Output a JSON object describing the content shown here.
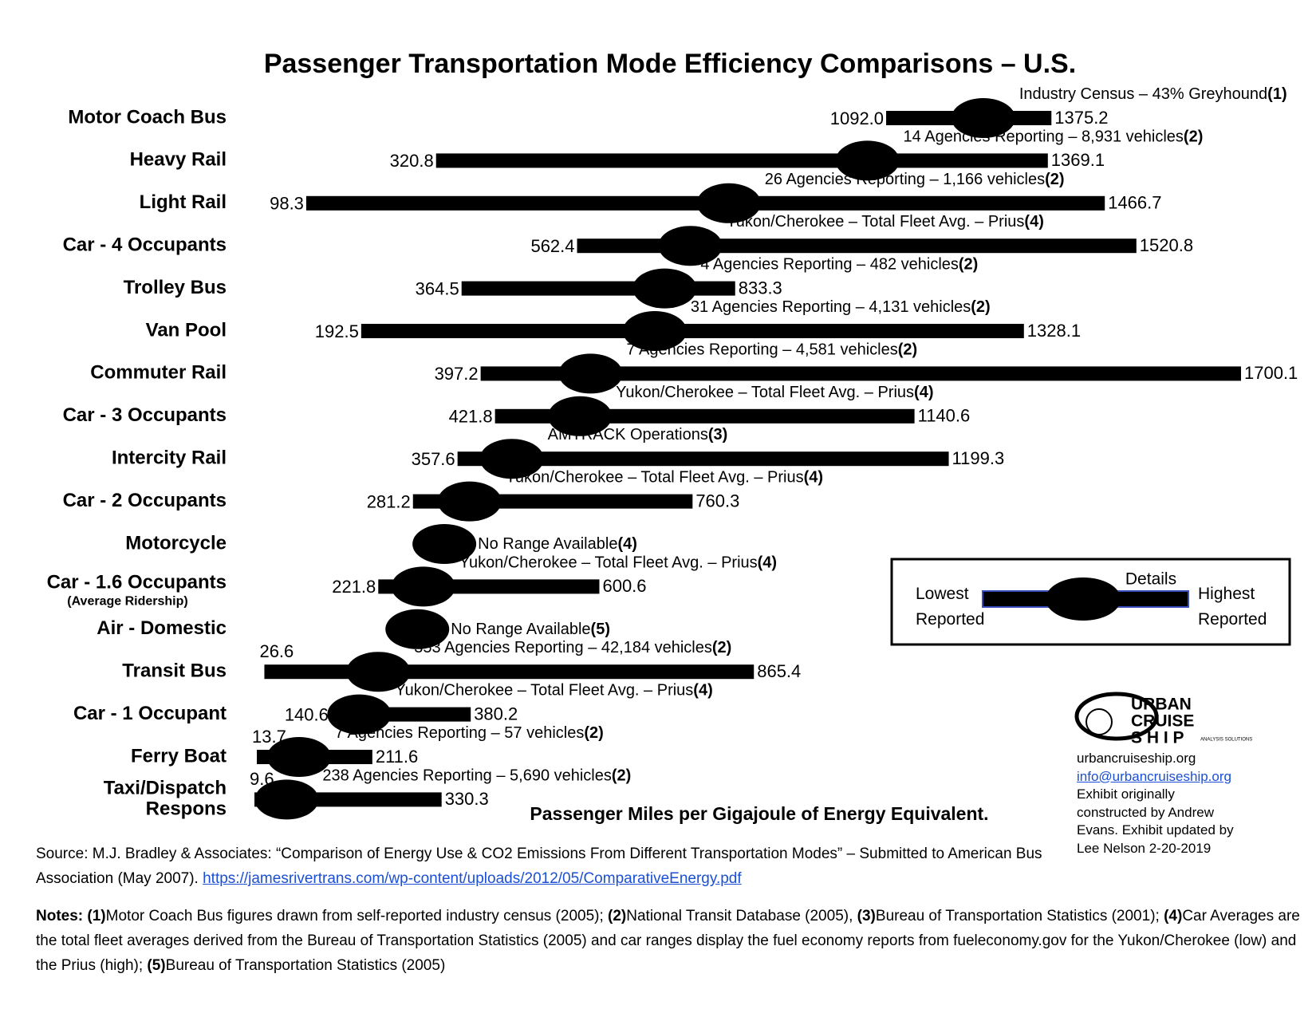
{
  "chart_data": {
    "type": "range",
    "title": "Passenger Transportation Mode Efficiency Comparisons – U.S.",
    "axis_label": "Passenger Miles per Gigajoule of Energy Equivalent.",
    "categories": [
      "Motor Coach Bus",
      "Heavy Rail",
      "Light Rail",
      "Car - 4 Occupants",
      "Trolley Bus",
      "Van Pool",
      "Commuter Rail",
      "Car - 3 Occupants",
      "Intercity Rail",
      "Car - 2 Occupants",
      "Motorcycle",
      "Car - 1.6 Occupants",
      "Air - Domestic",
      "Transit Bus",
      "Car - 1 Occupant",
      "Ferry Boat",
      "Taxi/Dispatch\nRespons"
    ],
    "category_notes": [
      null,
      null,
      null,
      null,
      null,
      null,
      null,
      null,
      null,
      null,
      null,
      "(Average Ridership)",
      null,
      null,
      null,
      null,
      null
    ],
    "series": [
      {
        "name": "Lowest Reported",
        "color": "#000000",
        "values": [
          1092.0,
          320.8,
          98.3,
          562.4,
          364.5,
          192.5,
          397.2,
          421.8,
          357.6,
          281.2,
          null,
          221.8,
          null,
          26.6,
          140.6,
          13.7,
          9.6
        ],
        "value_labels": [
          "1092.0",
          "320.8",
          "98.3",
          "562.4",
          "364.5",
          "192.5",
          "397.2",
          "421.8",
          "357.6",
          "281.2",
          null,
          "221.8",
          null,
          "26.6",
          "140.6",
          "13.7",
          "9.6"
        ]
      },
      {
        "name": "Average",
        "color": "#000000",
        "values": [
          1258.5,
          1059.9,
          822.4,
          756.4,
          712.5,
          695.5,
          585.6,
          567.3,
          450.5,
          378.1,
          335.0,
          298.9,
          288.7,
          221.8,
          189.1,
          86.0,
          64.8
        ],
        "value_labels": [
          "1258.5",
          "1059.9",
          "822.4",
          "756.4",
          "712.5",
          "695.5",
          "585.6",
          "567.3",
          "450.5",
          "378.1",
          "335.0",
          "298.9",
          "288.7",
          "221.8",
          "189.1",
          "86.0",
          "64.8"
        ]
      },
      {
        "name": "Highest Reported",
        "color": "#000000",
        "values": [
          1375.2,
          1369.1,
          1466.7,
          1520.8,
          833.3,
          1328.1,
          1700.1,
          1140.6,
          1199.3,
          760.3,
          null,
          600.6,
          null,
          865.4,
          380.2,
          211.6,
          330.3
        ],
        "value_labels": [
          "1375.2",
          "1369.1",
          "1466.7",
          "1520.8",
          "833.3",
          "1328.1",
          "1700.1",
          "1140.6",
          "1199.3",
          "760.3",
          null,
          "600.6",
          null,
          "865.4",
          "380.2",
          "211.6",
          "330.3"
        ]
      }
    ],
    "details": [
      "Industry Census – 43% Greyhound",
      "14 Agencies Reporting – 8,931 vehicles",
      "26 Agencies Reporting – 1,166 vehicles",
      "Yukon/Cherokee – Total Fleet Avg. – Prius",
      "4 Agencies Reporting – 482 vehicles",
      "31 Agencies Reporting – 4,131 vehicles",
      "7 Agencies Reporting – 4,581 vehicles",
      "Yukon/Cherokee – Total Fleet Avg. – Prius",
      "AMTRACK Operations",
      "Yukon/Cherokee – Total Fleet Avg. – Prius",
      "No Range Available",
      "Yukon/Cherokee – Total Fleet Avg. – Prius",
      "No Range Available",
      "353 Agencies Reporting – 42,184 vehicles",
      "Yukon/Cherokee – Total Fleet Avg. – Prius",
      "7 Agencies Reporting – 57 vehicles",
      "238 Agencies Reporting – 5,690 vehicles"
    ],
    "detail_notes": [
      "(1)",
      "(2)",
      "(2)",
      "(4)",
      "(2)",
      "(2)",
      "(2)",
      "(4)",
      "(3)",
      "(4)",
      "(4)",
      "(4)",
      "(5)",
      "(2)",
      "(4)",
      "(2)",
      "(2)"
    ],
    "legend_details": "Details",
    "bar_color": "#000000",
    "label_color": "#ffffff"
  },
  "logo": {
    "lines": [
      "URBAN",
      "CRUISE",
      "S H I P"
    ],
    "tagline": "ANALYSIS SOLUTIONS"
  },
  "contact": {
    "site": "urbancruiseship.org",
    "email": "info@urbancruiseship.org",
    "credit": [
      "Exhibit originally",
      "constructed by Andrew",
      "Evans. Exhibit updated by",
      "Lee Nelson 2-20-2019"
    ]
  },
  "source": {
    "text": "Source: M.J. Bradley & Associates: “Comparison of Energy Use & CO2 Emissions From Different Transportation Modes” – Submitted to American Bus Association (May 2007).",
    "url": "https://jamesrivertrans.com/wp-content/uploads/2012/05/ComparativeEnergy.pdf"
  },
  "notes": {
    "label": "Notes:",
    "items": [
      {
        "mark": "(1)",
        "text": "Motor Coach Bus figures drawn from self-reported industry census (2005);"
      },
      {
        "mark": "(2)",
        "text": "National Transit Database (2005),"
      },
      {
        "mark": "(3)",
        "text": "Bureau of Transportation Statistics (2001);"
      },
      {
        "mark": "(4)",
        "text": "Car Averages are the total fleet averages derived from the Bureau of Transportation Statistics (2005) and car ranges display the fuel economy reports from fueleconomy.gov for the Yukon/Cherokee (low) and the Prius (high);"
      },
      {
        "mark": "(5)",
        "text": "Bureau of Transportation Statistics (2005)"
      }
    ]
  }
}
